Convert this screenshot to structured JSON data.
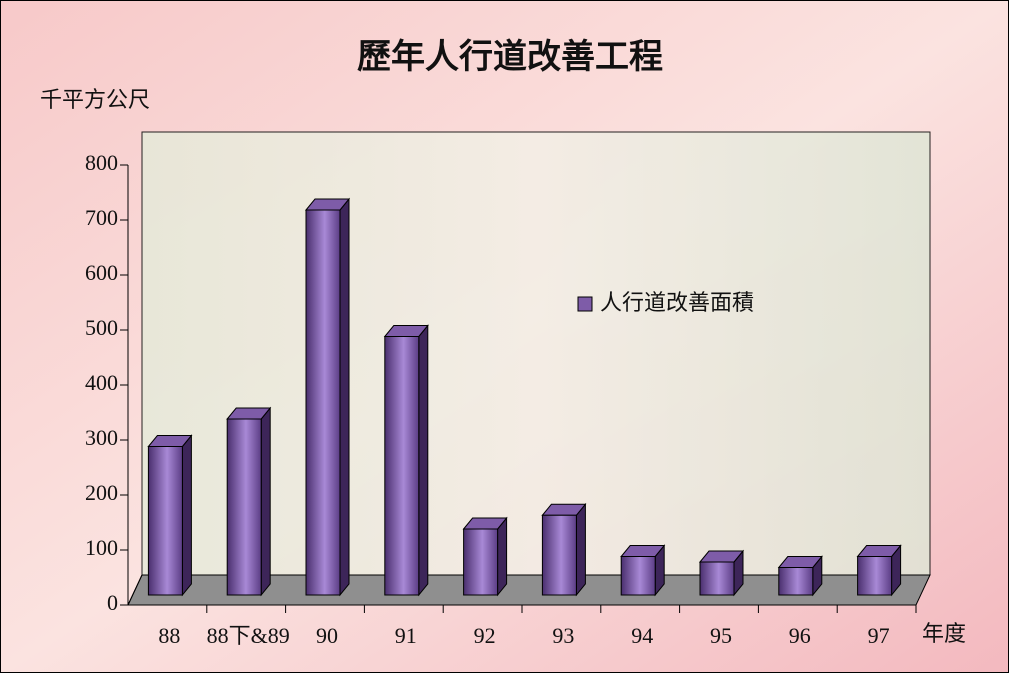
{
  "chart_data": {
    "type": "bar",
    "title": "歷年人行道改善工程",
    "y_label": "千平方公尺",
    "x_label": "年度",
    "categories": [
      "88",
      "88下&89",
      "90",
      "91",
      "92",
      "93",
      "94",
      "95",
      "96",
      "97"
    ],
    "series": [
      {
        "name": "人行道改善面積",
        "color": "#7e5ca8",
        "values": [
          270,
          320,
          700,
          470,
          120,
          145,
          70,
          60,
          50,
          70
        ]
      }
    ],
    "ylim": [
      0,
      800
    ],
    "yticks": [
      0,
      100,
      200,
      300,
      400,
      500,
      600,
      700,
      800
    ],
    "legend": "center-right"
  }
}
